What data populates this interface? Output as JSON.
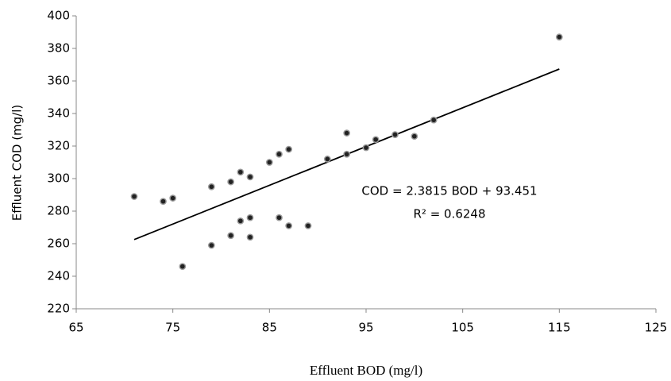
{
  "chart_data": {
    "type": "scatter",
    "x_label": "Effluent BOD (mg/l)",
    "y_label": "Effluent COD (mg/l)",
    "x": [
      71,
      74,
      75,
      76,
      79,
      79,
      81,
      81,
      82,
      82,
      83,
      83,
      83,
      85,
      86,
      86,
      87,
      87,
      89,
      91,
      93,
      93,
      95,
      96,
      98,
      100,
      102,
      115
    ],
    "values": [
      289,
      286,
      288,
      246,
      295,
      259,
      298,
      265,
      304,
      274,
      301,
      276,
      264,
      310,
      315,
      276,
      318,
      271,
      271,
      312,
      328,
      315,
      319,
      324,
      327,
      326,
      336,
      387
    ],
    "color": "#222222",
    "xlim": [
      65,
      125
    ],
    "xticks": [
      65,
      75,
      85,
      95,
      105,
      115,
      125
    ],
    "ylim": [
      220,
      400
    ],
    "yticks": [
      220,
      240,
      260,
      280,
      300,
      320,
      340,
      360,
      380,
      400
    ],
    "grid": false,
    "trendline": {
      "slope": 2.3815,
      "intercept": 93.451,
      "color": "#000000"
    },
    "annotations": [
      "COD = 2.3815 BOD + 93.451",
      "R² = 0.6248"
    ]
  }
}
